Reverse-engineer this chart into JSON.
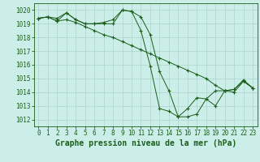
{
  "bg_color": "#cceee8",
  "grid_color": "#aad4cc",
  "line_color": "#1a5e1a",
  "xlabel": "Graphe pression niveau de la mer (hPa)",
  "xlabel_fontsize": 7,
  "xlim": [
    -0.5,
    23.5
  ],
  "ylim": [
    1011.5,
    1020.5
  ],
  "yticks": [
    1012,
    1013,
    1014,
    1015,
    1016,
    1017,
    1018,
    1019,
    1020
  ],
  "xticks": [
    0,
    1,
    2,
    3,
    4,
    5,
    6,
    7,
    8,
    9,
    10,
    11,
    12,
    13,
    14,
    15,
    16,
    17,
    18,
    19,
    20,
    21,
    22,
    23
  ],
  "tick_fontsize": 5.5,
  "series": [
    {
      "x": [
        0,
        1,
        2,
        3,
        4,
        5,
        6,
        7,
        8,
        9,
        10,
        11,
        12,
        13,
        14,
        15,
        16,
        17,
        18,
        19,
        20,
        21,
        22,
        23
      ],
      "y": [
        1019.4,
        1019.5,
        1019.4,
        1019.8,
        1019.3,
        1019.0,
        1019.0,
        1019.0,
        1019.0,
        1020.0,
        1019.9,
        1019.5,
        1018.2,
        1015.5,
        1014.1,
        1012.2,
        1012.2,
        1012.4,
        1013.5,
        1013.0,
        1014.1,
        1014.2,
        1014.8,
        1014.3
      ]
    },
    {
      "x": [
        0,
        1,
        2,
        3,
        4,
        5,
        6,
        7,
        8,
        9,
        10,
        11,
        12,
        13,
        14,
        15,
        16,
        17,
        18,
        19,
        20,
        21,
        22,
        23
      ],
      "y": [
        1019.4,
        1019.5,
        1019.2,
        1019.8,
        1019.3,
        1019.0,
        1019.0,
        1019.1,
        1019.3,
        1020.0,
        1019.9,
        1018.5,
        1015.9,
        1012.8,
        1012.6,
        1012.2,
        1012.8,
        1013.6,
        1013.5,
        1014.1,
        1014.1,
        1014.2,
        1014.9,
        1014.3
      ]
    },
    {
      "x": [
        0,
        1,
        2,
        3,
        4,
        5,
        6,
        7,
        8,
        9,
        10,
        11,
        12,
        13,
        14,
        15,
        16,
        17,
        18,
        19,
        20,
        21,
        22,
        23
      ],
      "y": [
        1019.4,
        1019.5,
        1019.2,
        1019.3,
        1019.1,
        1018.8,
        1018.5,
        1018.2,
        1018.0,
        1017.7,
        1017.4,
        1017.1,
        1016.8,
        1016.5,
        1016.2,
        1015.9,
        1015.6,
        1015.3,
        1015.0,
        1014.5,
        1014.1,
        1014.0,
        1014.8,
        1014.3
      ]
    }
  ]
}
